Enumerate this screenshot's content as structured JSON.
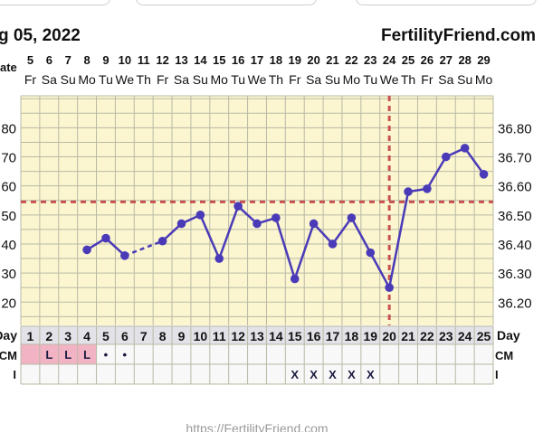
{
  "header": {
    "date_fragment": "g 05, 2022",
    "brand": "FertilityFriend.com"
  },
  "footer": {
    "url": "https://FertilityFriend.com"
  },
  "row_labels": {
    "date": "ate",
    "day": "Day",
    "cm": "CM",
    "i": "I"
  },
  "colors": {
    "background": "#FBF6D0",
    "grid": "#B9B9A6",
    "line": "#4A3AB8",
    "coverline": "#C8524F",
    "pink_cell": "#F2B3C4",
    "day_row": "#E2E2E8"
  },
  "chart_data": {
    "type": "line",
    "dates": [
      "5",
      "6",
      "7",
      "8",
      "9",
      "10",
      "11",
      "12",
      "13",
      "14",
      "15",
      "16",
      "17",
      "18",
      "19",
      "20",
      "21",
      "22",
      "23",
      "24",
      "25",
      "26",
      "27",
      "28",
      "29"
    ],
    "weekdays": [
      "Fr",
      "Sa",
      "Su",
      "Mo",
      "Tu",
      "We",
      "Th",
      "Fr",
      "Sa",
      "Su",
      "Mo",
      "Tu",
      "We",
      "Th",
      "Fr",
      "Sa",
      "Su",
      "Mo",
      "Tu",
      "We",
      "Th",
      "Fr",
      "Sa",
      "Su",
      "Mo"
    ],
    "x": [
      1,
      2,
      3,
      4,
      5,
      6,
      7,
      8,
      9,
      10,
      11,
      12,
      13,
      14,
      15,
      16,
      17,
      18,
      19,
      20,
      21,
      22,
      23,
      24,
      25
    ],
    "temps": [
      null,
      null,
      null,
      36.38,
      36.42,
      36.36,
      null,
      36.41,
      36.47,
      36.5,
      36.35,
      36.53,
      36.47,
      36.49,
      36.28,
      36.47,
      36.4,
      36.49,
      36.37,
      36.25,
      36.58,
      36.59,
      36.7,
      36.73,
      36.64
    ],
    "dashed_segments": [
      [
        6,
        8
      ]
    ],
    "ylim": [
      36.12,
      36.91
    ],
    "y_ticks": [
      36.2,
      36.3,
      36.4,
      36.5,
      36.6,
      36.7,
      36.8
    ],
    "y_ticks_right": [
      "36.20",
      "36.30",
      "36.40",
      "36.50",
      "36.60",
      "36.70",
      "36.80"
    ],
    "y_ticks_left": [
      "20",
      "30",
      "40",
      "50",
      "60",
      "70",
      "80"
    ],
    "coverline": 36.545,
    "ovulation_day": 20,
    "grid": true,
    "cm": [
      "",
      "L",
      "L",
      "L",
      "•",
      "•",
      "",
      "",
      "",
      "",
      "",
      "",
      "",
      "",
      "",
      "",
      "",
      "",
      "",
      "",
      "",
      "",
      "",
      "",
      ""
    ],
    "i": [
      "",
      "",
      "",
      "",
      "",
      "",
      "",
      "",
      "",
      "",
      "",
      "",
      "",
      "",
      "X",
      "X",
      "X",
      "X",
      "X",
      "",
      "",
      "",
      "",
      "",
      ""
    ]
  }
}
